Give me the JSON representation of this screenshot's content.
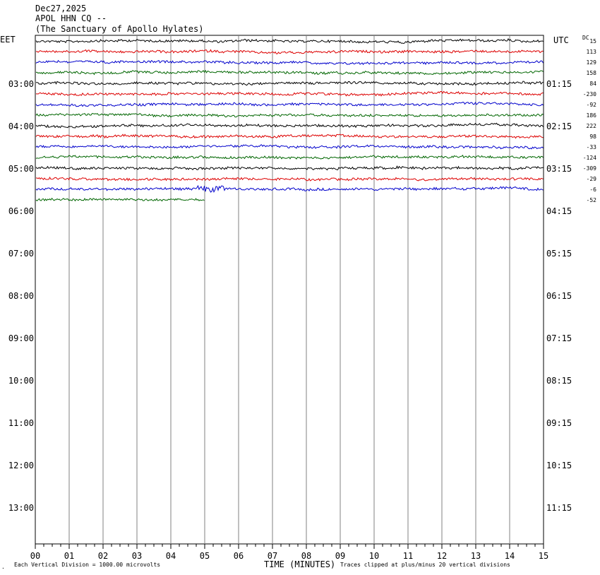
{
  "header": {
    "date": "Dec27,2025",
    "station": "APOL HHN CQ --",
    "site": "(The Sanctuary of Apollo Hylates)"
  },
  "left_axis_label": "EET",
  "right_axis_label": "UTC",
  "dc_label": "DC",
  "footer": {
    "scale_note": "Each Vertical Division = 1000.00 microvolts",
    "x_title": "TIME (MINUTES)",
    "clip_note": "Traces clipped at plus/minus 20 vertical divisions"
  },
  "colors": {
    "trace_cycle": [
      "#000000",
      "#dd0000",
      "#0000cc",
      "#006600"
    ],
    "grid": "#808080"
  },
  "chart_data": {
    "type": "line",
    "title": "APOL HHN CQ --",
    "xlabel": "TIME (MINUTES)",
    "x_ticks": [
      "00",
      "01",
      "02",
      "03",
      "04",
      "05",
      "06",
      "07",
      "08",
      "09",
      "10",
      "11",
      "12",
      "13",
      "14",
      "15"
    ],
    "xlim": [
      0,
      15
    ],
    "row_minutes": 15,
    "left_time_labels": [
      "03:00",
      "04:00",
      "05:00",
      "06:00",
      "07:00",
      "08:00",
      "09:00",
      "10:00",
      "11:00",
      "12:00",
      "13:00"
    ],
    "right_time_labels": [
      "01:15",
      "02:15",
      "03:15",
      "04:15",
      "05:15",
      "06:15",
      "07:15",
      "08:15",
      "09:15",
      "10:15",
      "11:15"
    ],
    "dc_offsets": [
      "15",
      "113",
      "129",
      "158",
      "84",
      "-230",
      "-92",
      "186",
      "222",
      "98",
      "-33",
      "-124",
      "-309",
      "-29",
      "-6",
      "-52"
    ],
    "traces": [
      {
        "color": "#000000",
        "x_end": 15
      },
      {
        "color": "#dd0000",
        "x_end": 15
      },
      {
        "color": "#0000cc",
        "x_end": 15
      },
      {
        "color": "#006600",
        "x_end": 15
      },
      {
        "color": "#000000",
        "x_end": 15
      },
      {
        "color": "#dd0000",
        "x_end": 15
      },
      {
        "color": "#0000cc",
        "x_end": 15
      },
      {
        "color": "#006600",
        "x_end": 15
      },
      {
        "color": "#000000",
        "x_end": 15
      },
      {
        "color": "#dd0000",
        "x_end": 15
      },
      {
        "color": "#0000cc",
        "x_end": 15
      },
      {
        "color": "#006600",
        "x_end": 15
      },
      {
        "color": "#000000",
        "x_end": 15
      },
      {
        "color": "#dd0000",
        "x_end": 15
      },
      {
        "color": "#0000cc",
        "x_end": 15
      },
      {
        "color": "#006600",
        "x_end": 5
      }
    ],
    "grid": true
  }
}
